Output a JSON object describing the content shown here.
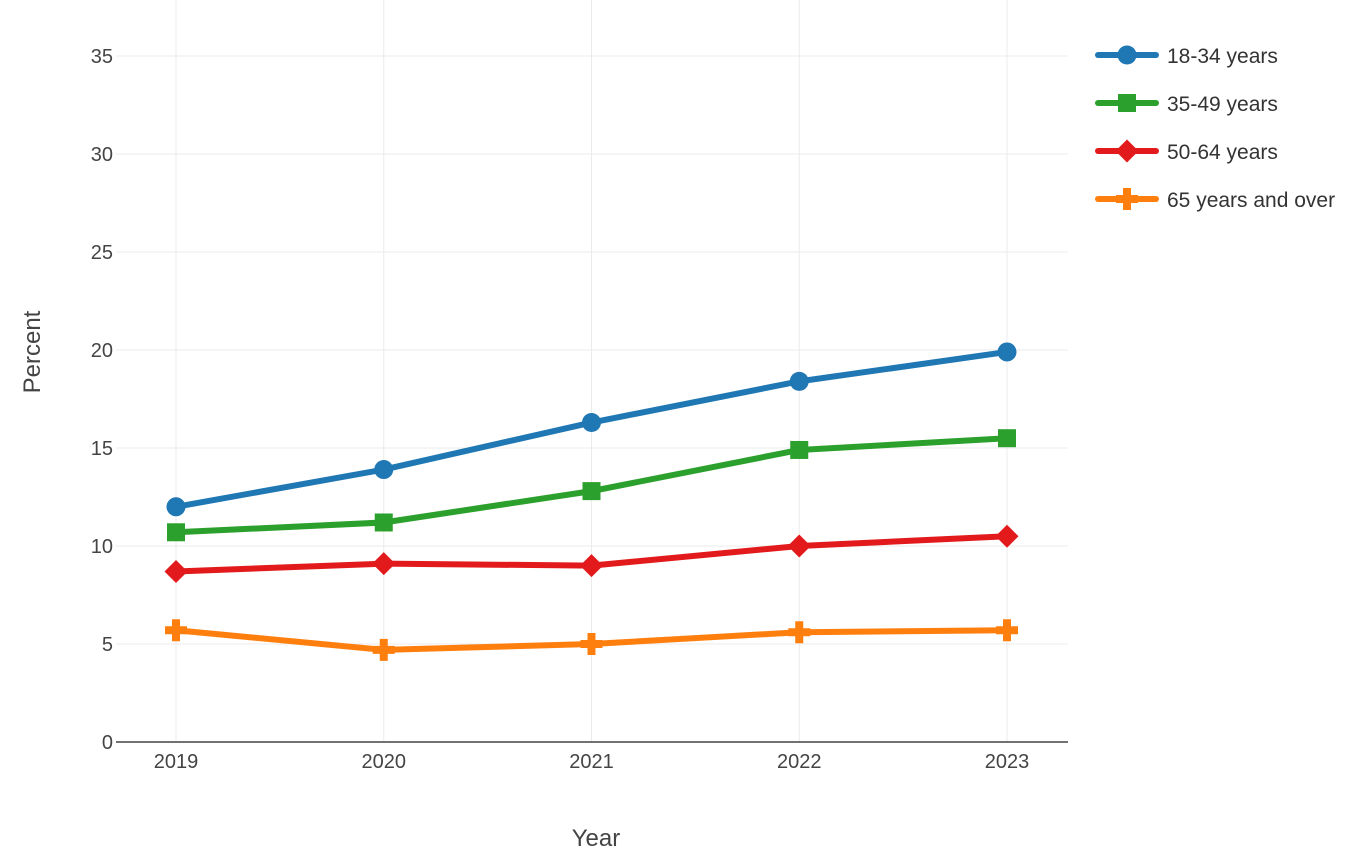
{
  "chart_data": {
    "type": "line",
    "xlabel": "Year",
    "ylabel": "Percent",
    "categories": [
      "2019",
      "2020",
      "2021",
      "2022",
      "2023"
    ],
    "ylim": [
      0,
      37
    ],
    "yticks": [
      0,
      5,
      10,
      15,
      20,
      25,
      30,
      35
    ],
    "grid": true,
    "legend_position": "top-right",
    "series": [
      {
        "name": "18-34 years",
        "values": [
          12.0,
          13.9,
          16.3,
          18.4,
          19.9
        ],
        "color": "#1f77b4",
        "marker": "circle"
      },
      {
        "name": "35-49 years",
        "values": [
          10.7,
          11.2,
          12.8,
          14.9,
          15.5
        ],
        "color": "#2ca02c",
        "marker": "square"
      },
      {
        "name": "50-64 years",
        "values": [
          8.7,
          9.1,
          9.0,
          10.0,
          10.5
        ],
        "color": "#e31a1c",
        "marker": "diamond"
      },
      {
        "name": "65 years and over",
        "values": [
          5.7,
          4.7,
          5.0,
          5.6,
          5.7
        ],
        "color": "#ff7f0e",
        "marker": "cross"
      }
    ]
  }
}
